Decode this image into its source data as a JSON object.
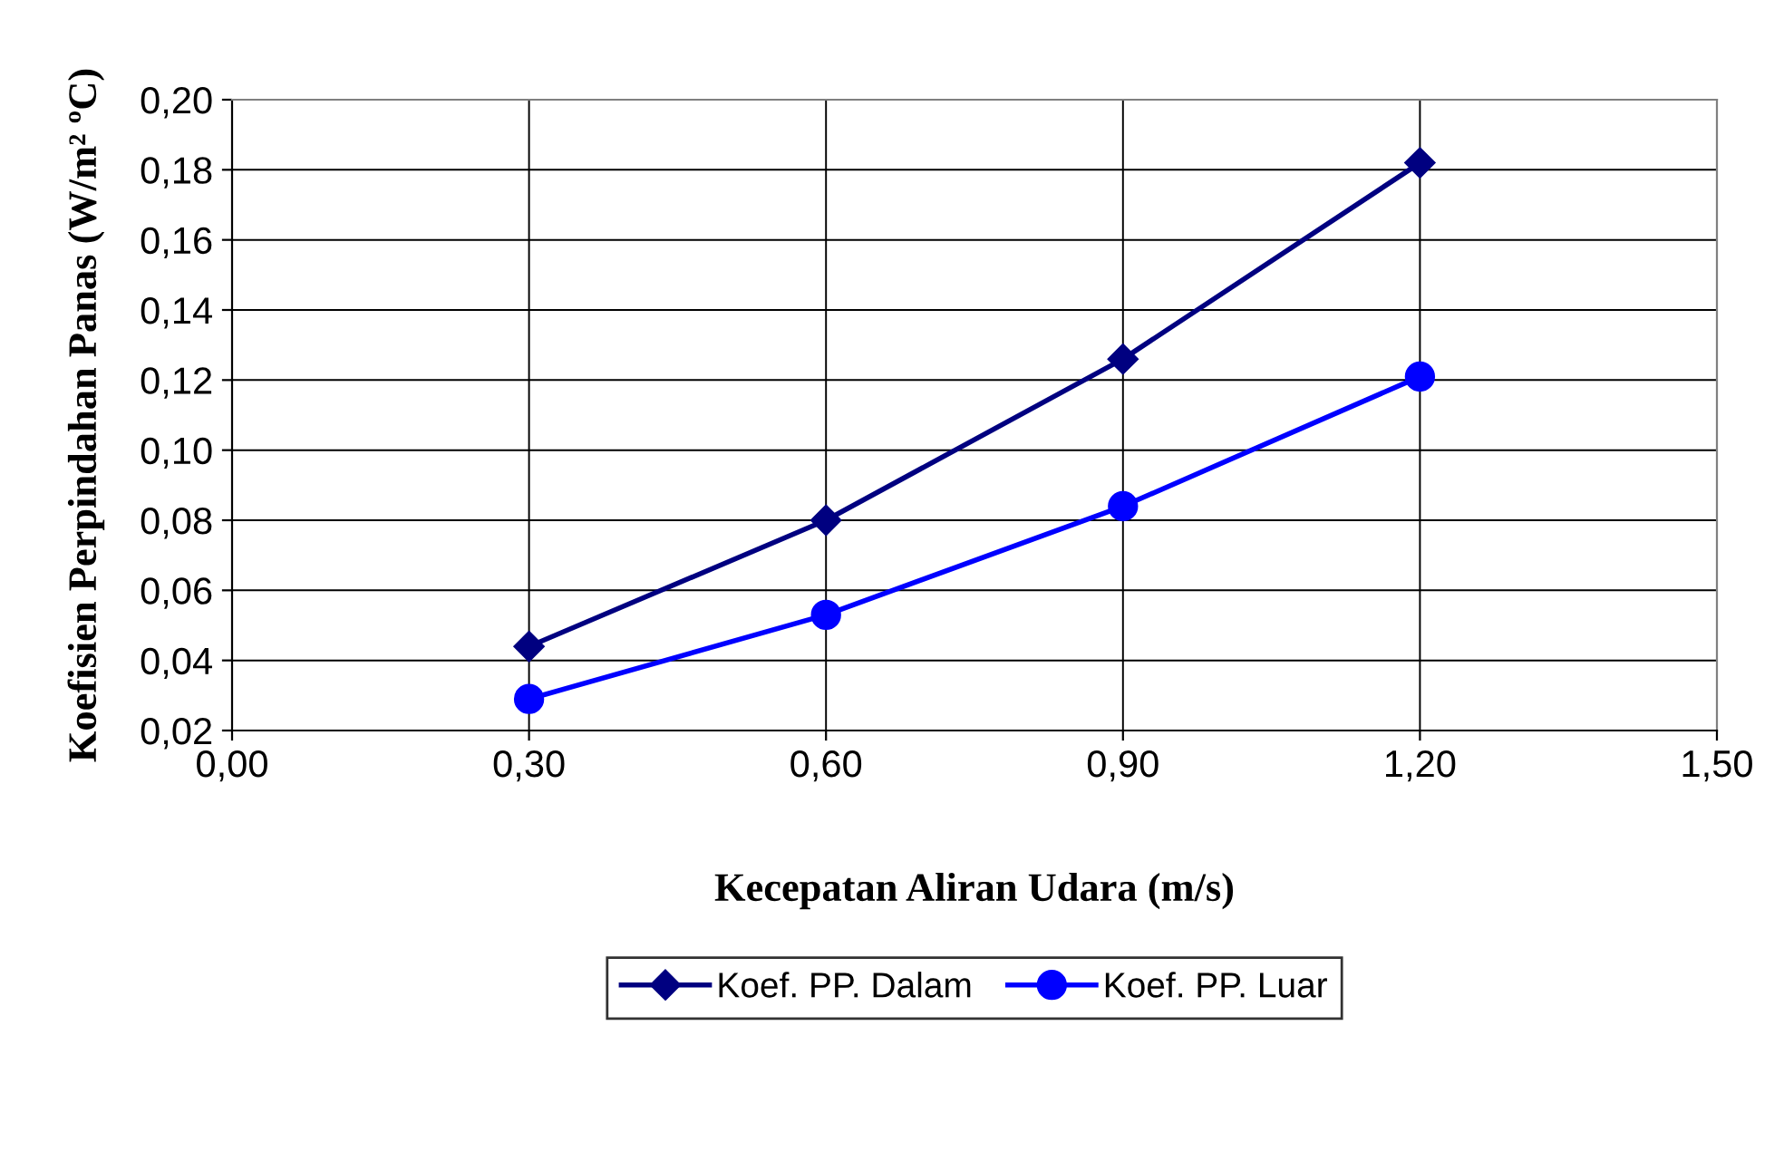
{
  "chart_data": {
    "type": "line",
    "xlabel": "Kecepatan Aliran Udara (m/s)",
    "ylabel": "Koefisien Perpindahan Panas (W/m² ºC)",
    "x": [
      0.3,
      0.6,
      0.9,
      1.2
    ],
    "series": [
      {
        "name": "Koef. PP. Dalam",
        "color": "#000080",
        "marker": "diamond",
        "values": [
          0.044,
          0.08,
          0.126,
          0.182
        ]
      },
      {
        "name": "Koef. PP. Luar",
        "color": "#0000ff",
        "marker": "circle",
        "values": [
          0.029,
          0.053,
          0.084,
          0.121
        ]
      }
    ],
    "xlim": [
      0.0,
      1.5
    ],
    "xticks": [
      {
        "value": 0.0,
        "label": "0,00"
      },
      {
        "value": 0.3,
        "label": "0,30"
      },
      {
        "value": 0.6,
        "label": "0,60"
      },
      {
        "value": 0.9,
        "label": "0,90"
      },
      {
        "value": 1.2,
        "label": "1,20"
      },
      {
        "value": 1.5,
        "label": "1,50"
      }
    ],
    "ylim": [
      0.02,
      0.2
    ],
    "yticks": [
      {
        "value": 0.02,
        "label": "0,02"
      },
      {
        "value": 0.04,
        "label": "0,04"
      },
      {
        "value": 0.06,
        "label": "0,06"
      },
      {
        "value": 0.08,
        "label": "0,08"
      },
      {
        "value": 0.1,
        "label": "0,10"
      },
      {
        "value": 0.12,
        "label": "0,12"
      },
      {
        "value": 0.14,
        "label": "0,14"
      },
      {
        "value": 0.16,
        "label": "0,16"
      },
      {
        "value": 0.18,
        "label": "0,18"
      },
      {
        "value": 0.2,
        "label": "0,20"
      }
    ],
    "grid": true,
    "legend": "bottom",
    "line_style": "solid"
  }
}
